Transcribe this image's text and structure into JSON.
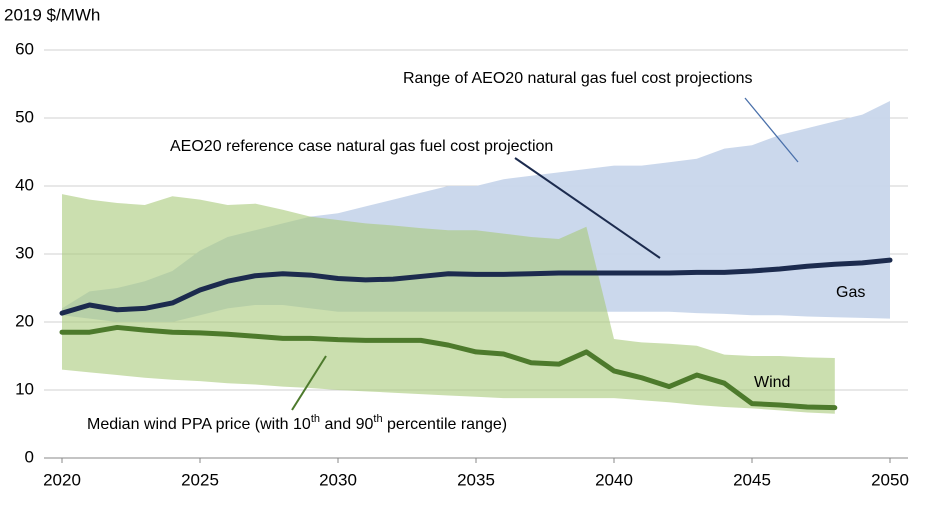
{
  "chart_data": {
    "type": "line",
    "y_label": "2019 $/MWh",
    "x": [
      2020,
      2021,
      2022,
      2023,
      2024,
      2025,
      2026,
      2027,
      2028,
      2029,
      2030,
      2031,
      2032,
      2033,
      2034,
      2035,
      2036,
      2037,
      2038,
      2039,
      2040,
      2041,
      2042,
      2043,
      2044,
      2045,
      2046,
      2047,
      2048,
      2049,
      2050
    ],
    "xlim": [
      2020,
      2050
    ],
    "xticks": [
      2020,
      2025,
      2030,
      2035,
      2040,
      2045,
      2050
    ],
    "ylim": [
      0,
      60
    ],
    "yticks": [
      0,
      10,
      20,
      30,
      40,
      50,
      60
    ],
    "grid": true,
    "series": [
      {
        "name": "Gas",
        "color": "#1c2b4e",
        "band_color": "#c8d6eb",
        "values": [
          21.3,
          22.5,
          21.8,
          22.0,
          22.8,
          24.7,
          26.0,
          26.8,
          27.1,
          26.9,
          26.4,
          26.2,
          26.3,
          26.7,
          27.1,
          27.0,
          27.0,
          27.1,
          27.2,
          27.2,
          27.2,
          27.2,
          27.2,
          27.3,
          27.3,
          27.5,
          27.8,
          28.2,
          28.5,
          28.7,
          29.1
        ],
        "upper": [
          22,
          24.5,
          25,
          26,
          27.5,
          30.5,
          32.5,
          33.5,
          34.5,
          35.5,
          36,
          37,
          38,
          39,
          40,
          40,
          41,
          41.5,
          42,
          42.5,
          43,
          43,
          43.5,
          44,
          45.5,
          46,
          47.5,
          48.5,
          49.5,
          50.5,
          52.5
        ],
        "lower": [
          21,
          20.5,
          20,
          20,
          20,
          21,
          22,
          22.5,
          22.5,
          22,
          21.5,
          21.5,
          21.5,
          21.5,
          21.5,
          21.5,
          21.5,
          21.5,
          21.5,
          21.5,
          21.5,
          21.5,
          21.5,
          21.3,
          21.2,
          21,
          21,
          20.8,
          20.7,
          20.6,
          20.5
        ]
      },
      {
        "name": "Wind",
        "color": "#4d7a2c",
        "band_color": "#a9c97a",
        "values": [
          18.5,
          18.5,
          19.2,
          18.8,
          18.5,
          18.4,
          18.2,
          17.9,
          17.6,
          17.6,
          17.4,
          17.3,
          17.3,
          17.3,
          16.6,
          15.6,
          15.3,
          14,
          13.8,
          15.6,
          12.8,
          11.8,
          10.5,
          12.2,
          11,
          8,
          7.8,
          7.5,
          7.4,
          null,
          null
        ],
        "upper": [
          38.8,
          38,
          37.5,
          37.2,
          38.5,
          38,
          37.2,
          37.4,
          36.5,
          35.5,
          35,
          34.5,
          34.2,
          33.8,
          33.5,
          33.5,
          33,
          32.5,
          32.2,
          34,
          17.5,
          17,
          16.8,
          16.5,
          15.2,
          15,
          15,
          14.8,
          14.7,
          null,
          null
        ],
        "lower": [
          13,
          12.6,
          12.2,
          11.8,
          11.5,
          11.3,
          11,
          10.8,
          10.5,
          10.3,
          10,
          9.8,
          9.6,
          9.4,
          9.2,
          9,
          8.8,
          8.8,
          8.8,
          8.8,
          8.8,
          8.5,
          8.2,
          7.8,
          7.5,
          7.3,
          7,
          6.7,
          6.5,
          null,
          null
        ]
      }
    ],
    "annotations": [
      {
        "text": "Range of AEO20 natural gas fuel cost projections",
        "color": "#4a70aa"
      },
      {
        "text": "AEO20 reference case natural gas fuel cost projection",
        "color": "#1c2b4e"
      },
      {
        "parts": [
          "Median wind PPA price (with 10",
          "th",
          " and 90",
          "th",
          " percentile range)"
        ],
        "color": "#4d7a2c"
      }
    ]
  }
}
